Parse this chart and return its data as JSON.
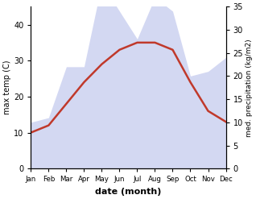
{
  "months": [
    "Jan",
    "Feb",
    "Mar",
    "Apr",
    "May",
    "Jun",
    "Jul",
    "Aug",
    "Sep",
    "Oct",
    "Nov",
    "Dec"
  ],
  "month_indices": [
    1,
    2,
    3,
    4,
    5,
    6,
    7,
    8,
    9,
    10,
    11,
    12
  ],
  "temperature": [
    10,
    12,
    18,
    24,
    29,
    33,
    35,
    35,
    33,
    24,
    16,
    13
  ],
  "precipitation": [
    10,
    11,
    22,
    22,
    40,
    34,
    28,
    37,
    34,
    20,
    21,
    24
  ],
  "temp_color": "#c0392b",
  "precip_fill_color": "#b0b8e8",
  "temp_ylim": [
    0,
    45
  ],
  "precip_ylim": [
    0,
    35
  ],
  "temp_yticks": [
    0,
    10,
    20,
    30,
    40
  ],
  "precip_yticks": [
    0,
    5,
    10,
    15,
    20,
    25,
    30,
    35
  ],
  "ylabel_left": "max temp (C)",
  "ylabel_right": "med. precipitation (kg/m2)",
  "xlabel": "date (month)",
  "bg_color": "#ffffff",
  "line_width": 1.8,
  "fill_alpha": 0.55,
  "precip_scale_factor": 1.2857
}
